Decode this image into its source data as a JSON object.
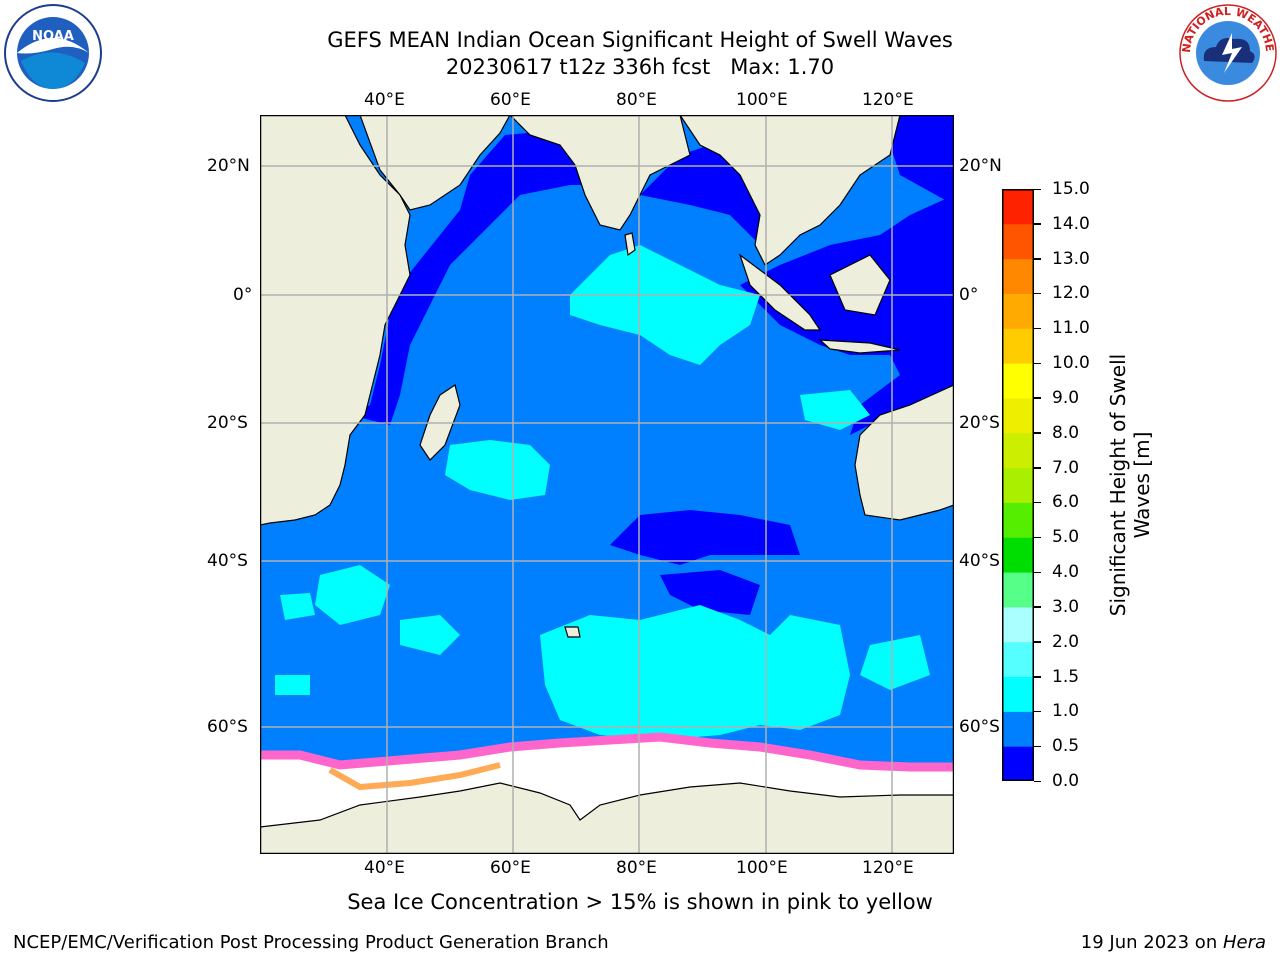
{
  "title": {
    "line1": "GEFS MEAN Indian Ocean Significant Height of Swell Waves",
    "line2": "20230617 t12z 336h fcst   Max: 1.70"
  },
  "map": {
    "lon_labels": [
      "40°E",
      "60°E",
      "80°E",
      "100°E",
      "120°E"
    ],
    "lat_labels": [
      "20°N",
      "0°",
      "20°S",
      "40°S",
      "60°S"
    ],
    "colors": {
      "land": "#eeeedd",
      "ice": "#ffffff",
      "deep_blue": "#0000ff",
      "mid_blue": "#0080ff",
      "cyan": "#00ffff",
      "ice_pink": "#ff66cc",
      "ice_orange": "#ffaa55",
      "grid": "#b0b0b0"
    }
  },
  "colorbar": {
    "label": "Significant Height of Swell Waves [m]",
    "ticks": [
      "15.0",
      "14.0",
      "13.0",
      "12.0",
      "11.0",
      "10.0",
      "9.0",
      "8.0",
      "7.0",
      "6.0",
      "5.0",
      "4.0",
      "3.0",
      "2.0",
      "1.5",
      "1.0",
      "0.5",
      "0.0"
    ],
    "colors": [
      "#0000ff",
      "#0080ff",
      "#00ffff",
      "#55ffff",
      "#aaffff",
      "#55ff88",
      "#00dd00",
      "#55ee00",
      "#aaee00",
      "#ccee00",
      "#eeee00",
      "#ffff00",
      "#ffcc00",
      "#ffaa00",
      "#ff8800",
      "#ff5500",
      "#ff2200"
    ]
  },
  "footer": {
    "note": "Sea Ice Concentration > 15% is shown in pink to yellow",
    "left": "NCEP/EMC/Verification Post Processing Product Generation Branch",
    "right_date": "19 Jun 2023 on ",
    "right_host": "Hera"
  },
  "logos": {
    "noaa_text": "NOAA",
    "nws_text": "NATIONAL WEATHER SERVICE"
  }
}
